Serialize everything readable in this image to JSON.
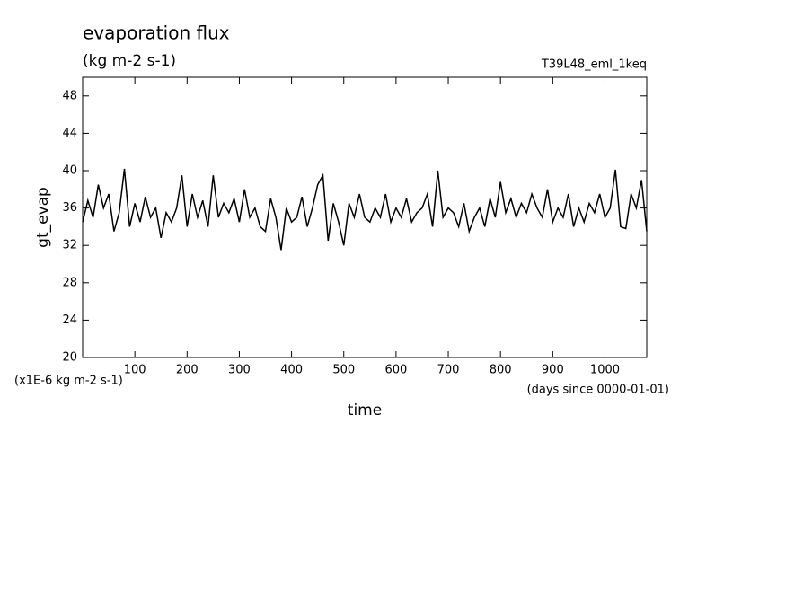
{
  "chart_data": {
    "type": "line",
    "title": "evaporation flux",
    "subtitle": "(kg m-2 s-1)",
    "run_label": "T39L48_eml_1keq",
    "x_label": "time",
    "y_label": "gt_evap",
    "y_unit_note": "(x1E-6 kg m-2 s-1)",
    "x_unit_note": "(days since 0000-01-01)",
    "xlim": [
      0,
      1080
    ],
    "ylim": [
      20,
      50
    ],
    "xticks": [
      100,
      200,
      300,
      400,
      500,
      600,
      700,
      800,
      900,
      1000
    ],
    "yticks": [
      20,
      24,
      28,
      32,
      36,
      40,
      44,
      48
    ],
    "x": [
      0,
      10,
      20,
      30,
      40,
      50,
      60,
      70,
      80,
      90,
      100,
      110,
      120,
      130,
      140,
      150,
      160,
      170,
      180,
      190,
      200,
      210,
      220,
      230,
      240,
      250,
      260,
      270,
      280,
      290,
      300,
      310,
      320,
      330,
      340,
      350,
      360,
      370,
      380,
      390,
      400,
      410,
      420,
      430,
      440,
      450,
      460,
      470,
      480,
      490,
      500,
      510,
      520,
      530,
      540,
      550,
      560,
      570,
      580,
      590,
      600,
      610,
      620,
      630,
      640,
      650,
      660,
      670,
      680,
      690,
      700,
      710,
      720,
      730,
      740,
      750,
      760,
      770,
      780,
      790,
      800,
      810,
      820,
      830,
      840,
      850,
      860,
      870,
      880,
      890,
      900,
      910,
      920,
      930,
      940,
      950,
      960,
      970,
      980,
      990,
      1000,
      1010,
      1020,
      1030,
      1040,
      1050,
      1060,
      1070,
      1080
    ],
    "series": [
      {
        "color": "#000000",
        "values": [
          34.5,
          36.8,
          35,
          38.5,
          36,
          37.5,
          33.5,
          35.5,
          40.2,
          34,
          36.5,
          34.5,
          37.2,
          35,
          36,
          32.8,
          35.5,
          34.5,
          36,
          39.5,
          34,
          37.5,
          35,
          36.8,
          34,
          39.5,
          35,
          36.5,
          35.5,
          37,
          34.5,
          38,
          35,
          36,
          34,
          33.5,
          37,
          35,
          31.5,
          36,
          34.5,
          35,
          37.2,
          34,
          36,
          38.5,
          39.5,
          32.5,
          36.5,
          34.5,
          32,
          36.5,
          35,
          37.5,
          35,
          34.5,
          36,
          35,
          37.5,
          34.5,
          36,
          35,
          37,
          34.5,
          35.5,
          36,
          37.5,
          34,
          40,
          35,
          36,
          35.5,
          34,
          36.5,
          33.5,
          35,
          36,
          34,
          37,
          35,
          38.8,
          35.5,
          37,
          35,
          36.5,
          35.5,
          37.5,
          36,
          35,
          38,
          34.5,
          36,
          35,
          37.5,
          34,
          36,
          34.5,
          36.5,
          35.5,
          37.5,
          35,
          36,
          40.1,
          34,
          33.8,
          37.5,
          36,
          39,
          33.5
        ]
      }
    ]
  }
}
